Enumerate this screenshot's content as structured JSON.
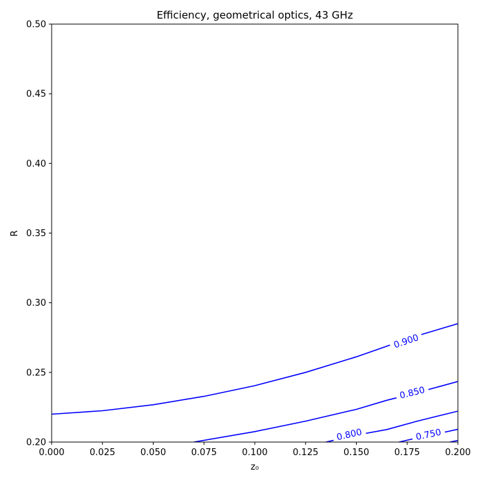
{
  "chart_data": {
    "type": "line",
    "title": "Efficiency, geometrical optics, 43 GHz",
    "xlabel": "z₀",
    "ylabel": "R",
    "xlim": [
      0.0,
      0.2
    ],
    "ylim": [
      0.2,
      0.5
    ],
    "x_ticks": [
      "0.000",
      "0.025",
      "0.050",
      "0.075",
      "0.100",
      "0.125",
      "0.150",
      "0.175",
      "0.200"
    ],
    "y_ticks": [
      "0.20",
      "0.25",
      "0.30",
      "0.35",
      "0.40",
      "0.45",
      "0.50"
    ],
    "grid": false,
    "line_color": "#0000ff",
    "series": [
      {
        "name": "0.900",
        "x": [
          0.0,
          0.025,
          0.05,
          0.075,
          0.1,
          0.125,
          0.15,
          0.165,
          0.18,
          0.2
        ],
        "y": [
          0.22,
          0.2225,
          0.2268,
          0.2328,
          0.2405,
          0.25,
          0.2612,
          0.2688,
          0.2763,
          0.285
        ],
        "label_at": [
          0.1745,
          0.2725
        ]
      },
      {
        "name": "0.850",
        "x": [
          0.07,
          0.1,
          0.125,
          0.15,
          0.165,
          0.18,
          0.2
        ],
        "y": [
          0.2,
          0.2075,
          0.215,
          0.2235,
          0.23,
          0.2355,
          0.2435
        ],
        "label_at": [
          0.1775,
          0.2355
        ]
      },
      {
        "name": "0.800",
        "x": [
          0.135,
          0.15,
          0.165,
          0.18,
          0.2
        ],
        "y": [
          0.2,
          0.205,
          0.209,
          0.215,
          0.2222
        ],
        "label_at": [
          0.1465,
          0.2055
        ]
      },
      {
        "name": "0.750",
        "x": [
          0.171,
          0.18,
          0.19,
          0.2
        ],
        "y": [
          0.2,
          0.203,
          0.206,
          0.2092
        ],
        "label_at": [
          0.1855,
          0.2055
        ]
      },
      {
        "name": "",
        "x": [
          0.196,
          0.2
        ],
        "y": [
          0.2,
          0.2012
        ],
        "label_at": null
      }
    ]
  }
}
